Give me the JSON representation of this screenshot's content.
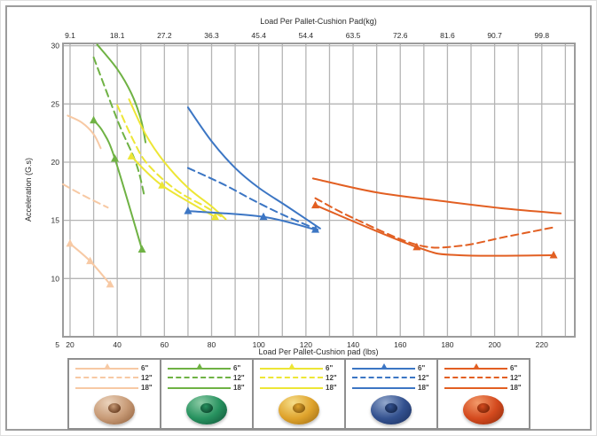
{
  "chart_data": {
    "type": "line",
    "top_axis": {
      "title": "Load Per Pallet-Cushion Pad(kg)",
      "tick_labels": [
        "9.1",
        "18.1",
        "27.2",
        "36.3",
        "45.4",
        "54.4",
        "63.5",
        "72.6",
        "81.6",
        "90.7",
        "99.8"
      ],
      "tick_positions_lbs": [
        20,
        40,
        60,
        80,
        100,
        120,
        140,
        160,
        180,
        200,
        220
      ]
    },
    "bottom_axis": {
      "title": "Load Per Pallet-Cushion pad (lbs)",
      "ticks": [
        20,
        40,
        60,
        80,
        100,
        120,
        140,
        160,
        180,
        200,
        220
      ],
      "minor_gridline_step": 10,
      "range_lbs": [
        17,
        234
      ]
    },
    "y_axis": {
      "title": "Acceleration (G.s)",
      "ticks": [
        5,
        10,
        15,
        20,
        25,
        30
      ],
      "range": [
        5,
        30.2
      ]
    },
    "grid": true,
    "grid_color": "#b5b5b5",
    "frame_color": "#9c9c9c",
    "series": [
      {
        "group": "peach",
        "label": "6\"",
        "style": "solid_marker",
        "color": "#F7C9A4",
        "points": [
          [
            20,
            13.0
          ],
          [
            28.5,
            11.5
          ],
          [
            37,
            9.5
          ]
        ],
        "marker_points": [
          0,
          1,
          2
        ]
      },
      {
        "group": "peach",
        "label": "12\"",
        "style": "dashed",
        "color": "#F7C9A4",
        "points": [
          [
            17,
            18.1
          ],
          [
            26,
            17.1
          ],
          [
            36,
            16.1
          ]
        ]
      },
      {
        "group": "peach",
        "label": "18\"",
        "style": "solid",
        "color": "#F7C9A4",
        "points": [
          [
            19,
            24.0
          ],
          [
            25,
            23.4
          ],
          [
            30,
            22.4
          ],
          [
            33,
            21.2
          ]
        ]
      },
      {
        "group": "green",
        "label": "6\"",
        "style": "solid_marker",
        "color": "#6FB244",
        "points": [
          [
            30,
            23.6
          ],
          [
            34,
            22.6
          ],
          [
            39,
            20.3
          ],
          [
            50.5,
            12.5
          ]
        ],
        "marker_points": [
          0,
          2,
          3
        ]
      },
      {
        "group": "green",
        "label": "12\"",
        "style": "dashed",
        "color": "#6FB244",
        "points": [
          [
            30,
            29.0
          ],
          [
            40.5,
            23.4
          ],
          [
            48,
            19.9
          ],
          [
            51.5,
            17.1
          ]
        ]
      },
      {
        "group": "green",
        "label": "18\"",
        "style": "solid",
        "color": "#6FB244",
        "points": [
          [
            31.5,
            30.1
          ],
          [
            40,
            28.0
          ],
          [
            46,
            25.9
          ],
          [
            50,
            23.7
          ],
          [
            52,
            21.7
          ]
        ]
      },
      {
        "group": "yellow",
        "label": "6\"",
        "style": "solid_marker",
        "color": "#EDE636",
        "points": [
          [
            46,
            20.5
          ],
          [
            59,
            18.0
          ],
          [
            81.5,
            15.3
          ]
        ],
        "marker_points": [
          0,
          1,
          2
        ]
      },
      {
        "group": "yellow",
        "label": "12\"",
        "style": "dashed",
        "color": "#EDE636",
        "points": [
          [
            40,
            24.9
          ],
          [
            47,
            21.8
          ],
          [
            53,
            19.8
          ],
          [
            65,
            17.6
          ],
          [
            78,
            16.1
          ],
          [
            85,
            15.2
          ]
        ]
      },
      {
        "group": "yellow",
        "label": "18\"",
        "style": "solid",
        "color": "#EDE636",
        "points": [
          [
            45,
            25.4
          ],
          [
            52,
            22.4
          ],
          [
            60,
            20.0
          ],
          [
            70,
            17.8
          ],
          [
            80,
            16.2
          ],
          [
            86,
            15.1
          ]
        ]
      },
      {
        "group": "blue",
        "label": "6\"",
        "style": "solid_marker",
        "color": "#3C76C4",
        "points": [
          [
            70,
            15.8
          ],
          [
            102,
            15.3
          ],
          [
            124,
            14.2
          ]
        ],
        "marker_points": [
          0,
          1,
          2
        ]
      },
      {
        "group": "blue",
        "label": "12\"",
        "style": "dashed",
        "color": "#3C76C4",
        "points": [
          [
            70,
            19.5
          ],
          [
            85,
            18.1
          ],
          [
            97,
            16.8
          ],
          [
            110,
            15.5
          ],
          [
            125,
            14.2
          ]
        ]
      },
      {
        "group": "blue",
        "label": "18\"",
        "style": "solid",
        "color": "#3C76C4",
        "points": [
          [
            70,
            24.7
          ],
          [
            80,
            21.8
          ],
          [
            90,
            19.5
          ],
          [
            100,
            17.8
          ],
          [
            112,
            16.2
          ],
          [
            126,
            14.3
          ]
        ]
      },
      {
        "group": "orange",
        "label": "6\"",
        "style": "solid_marker",
        "color": "#E25F22",
        "points": [
          [
            124,
            16.3
          ],
          [
            167,
            12.7
          ],
          [
            185,
            12.0
          ],
          [
            225,
            12.0
          ]
        ],
        "marker_points": [
          0,
          1,
          3
        ]
      },
      {
        "group": "orange",
        "label": "12\"",
        "style": "dashed",
        "color": "#E25F22",
        "points": [
          [
            124,
            16.9
          ],
          [
            140,
            15.2
          ],
          [
            167,
            12.9
          ],
          [
            185,
            12.8
          ],
          [
            205,
            13.6
          ],
          [
            225,
            14.4
          ]
        ]
      },
      {
        "group": "orange",
        "label": "18\"",
        "style": "solid",
        "color": "#E25F22",
        "points": [
          [
            123,
            18.6
          ],
          [
            150,
            17.4
          ],
          [
            180,
            16.6
          ],
          [
            205,
            16.0
          ],
          [
            228,
            15.6
          ]
        ]
      }
    ]
  },
  "legend": {
    "entry_styles": [
      "solid_marker",
      "dashed",
      "solid"
    ],
    "groups": [
      {
        "id": "peach",
        "line_color": "#F7C9A4",
        "entries": [
          "6\"",
          "12\"",
          "18\""
        ],
        "donut": {
          "base": "#C79A76",
          "highlight": "#EBD3BC",
          "shade": "#8F5E3A",
          "hole": "#6B3F22"
        }
      },
      {
        "id": "green",
        "line_color": "#6FB244",
        "entries": [
          "6\"",
          "12\"",
          "18\""
        ],
        "donut": {
          "base": "#27925F",
          "highlight": "#8CCBA5",
          "shade": "#115238",
          "hole": "#0E4A30"
        }
      },
      {
        "id": "yellow",
        "line_color": "#EDE636",
        "entries": [
          "6\"",
          "12\"",
          "18\""
        ],
        "donut": {
          "base": "#DFA32C",
          "highlight": "#F6DE8A",
          "shade": "#9C6B14",
          "hole": "#8A5E12"
        }
      },
      {
        "id": "blue",
        "line_color": "#3C76C4",
        "entries": [
          "6\"",
          "12\"",
          "18\""
        ],
        "donut": {
          "base": "#33518F",
          "highlight": "#93A8CC",
          "shade": "#1B2F5E",
          "hole": "#16294F"
        }
      },
      {
        "id": "orange",
        "line_color": "#E25F22",
        "entries": [
          "6\"",
          "12\"",
          "18\""
        ],
        "donut": {
          "base": "#D44A1E",
          "highlight": "#F29A6A",
          "shade": "#8E2B0C",
          "hole": "#7E2708"
        }
      }
    ]
  }
}
